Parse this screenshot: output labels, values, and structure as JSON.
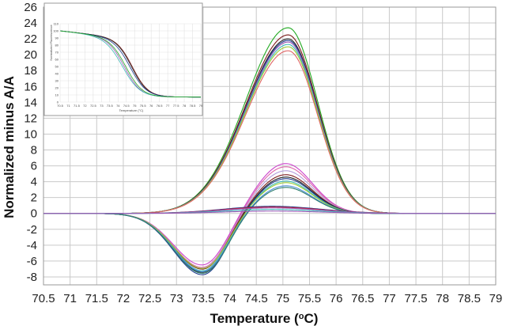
{
  "chart_data": [
    {
      "type": "line",
      "title": "",
      "xlabel": "Temperature (°C)",
      "xlabel_parts": {
        "before": "Temperature (",
        "sup": "o",
        "after": "C)"
      },
      "ylabel": "Normalized minus A/A",
      "xlim": [
        70.5,
        79
      ],
      "ylim": [
        -9,
        26
      ],
      "x_ticks": [
        "70.5",
        "71",
        "71.5",
        "72",
        "72.5",
        "73",
        "73.5",
        "74",
        "74.5",
        "75",
        "75.5",
        "76",
        "76.5",
        "77",
        "77.5",
        "78",
        "78.5",
        "79"
      ],
      "y_ticks": [
        "-8",
        "-6",
        "-4",
        "-2",
        "0",
        "2",
        "4",
        "6",
        "8",
        "10",
        "12",
        "14",
        "16",
        "18",
        "20",
        "22",
        "24",
        "26"
      ],
      "grid": true,
      "legend": "none",
      "series": [
        {
          "color": "#22aa22",
          "shape": "peak",
          "peak": 23.4,
          "center": 75.1,
          "sd_left": 0.8,
          "sd_right": 0.55
        },
        {
          "color": "#7c1c1c",
          "shape": "peak",
          "peak": 22.5,
          "center": 75.1,
          "sd_left": 0.8,
          "sd_right": 0.55
        },
        {
          "color": "#222222",
          "shape": "peak",
          "peak": 22.0,
          "center": 75.1,
          "sd_left": 0.8,
          "sd_right": 0.55
        },
        {
          "color": "#1f3d8f",
          "shape": "peak",
          "peak": 21.8,
          "center": 75.1,
          "sd_left": 0.8,
          "sd_right": 0.55
        },
        {
          "color": "#9b59b6",
          "shape": "peak",
          "peak": 21.6,
          "center": 75.1,
          "sd_left": 0.8,
          "sd_right": 0.55
        },
        {
          "color": "#3fb8b8",
          "shape": "peak",
          "peak": 21.3,
          "center": 75.1,
          "sd_left": 0.8,
          "sd_right": 0.55
        },
        {
          "color": "#99cc33",
          "shape": "peak",
          "peak": 21.0,
          "center": 75.1,
          "sd_left": 0.8,
          "sd_right": 0.55
        },
        {
          "color": "#e06666",
          "shape": "peak",
          "peak": 20.5,
          "center": 75.1,
          "sd_left": 0.8,
          "sd_right": 0.55
        },
        {
          "color": "#cc44cc",
          "shape": "biphasic",
          "pos": 6.3,
          "neg": -6.6
        },
        {
          "color": "#dd66aa",
          "shape": "biphasic",
          "pos": 5.9,
          "neg": -6.9
        },
        {
          "color": "#b39ddb",
          "shape": "biphasic",
          "pos": 5.4,
          "neg": -7.0
        },
        {
          "color": "#7c1c1c",
          "shape": "biphasic",
          "pos": 4.9,
          "neg": -7.1
        },
        {
          "color": "#222222",
          "shape": "biphasic",
          "pos": 4.6,
          "neg": -7.5
        },
        {
          "color": "#1f3d8f",
          "shape": "biphasic",
          "pos": 4.4,
          "neg": -7.8
        },
        {
          "color": "#3fb8b8",
          "shape": "biphasic",
          "pos": 4.1,
          "neg": -7.3
        },
        {
          "color": "#99cc33",
          "shape": "biphasic",
          "pos": 3.9,
          "neg": -7.0
        },
        {
          "color": "#4d8fd6",
          "shape": "biphasic",
          "pos": 3.5,
          "neg": -7.4
        },
        {
          "color": "#2e7d6e",
          "shape": "biphasic",
          "pos": 3.3,
          "neg": -7.6
        },
        {
          "color": "#1f3d8f",
          "shape": "bump",
          "peak": 0.9
        },
        {
          "color": "#cc2233",
          "shape": "bump",
          "peak": 0.8
        },
        {
          "color": "#9b59b6",
          "shape": "bump",
          "peak": 0.7
        },
        {
          "color": "#3fb8b8",
          "shape": "bump",
          "peak": 0.5
        },
        {
          "color": "#9b59b6",
          "shape": "bump",
          "peak": 0.3
        }
      ]
    },
    {
      "type": "line",
      "title": "",
      "xlabel": "Temperature (°C)",
      "ylabel": "Normalized Fluorescence",
      "xlim": [
        70.5,
        79
      ],
      "ylim": [
        0,
        110
      ],
      "x_ticks": [
        "70.5",
        "71",
        "71.5",
        "72",
        "72.5",
        "73",
        "73.5",
        "74",
        "74.5",
        "75",
        "75.5",
        "76",
        "76.5",
        "77",
        "77.5",
        "78",
        "78.5",
        "79"
      ],
      "y_ticks": [
        "0",
        "10",
        "20",
        "30",
        "40",
        "50",
        "60",
        "70",
        "80",
        "90",
        "100",
        "110"
      ],
      "grid": true,
      "legend": "none",
      "series": [
        {
          "color": "#7c1c1c",
          "midpoint": 74.9,
          "steepness": 2.1
        },
        {
          "color": "#222222",
          "midpoint": 74.85,
          "steepness": 2.1
        },
        {
          "color": "#1f3d8f",
          "midpoint": 74.75,
          "steepness": 2.0
        },
        {
          "color": "#9b59b6",
          "midpoint": 74.4,
          "steepness": 2.0
        },
        {
          "color": "#3fb8b8",
          "midpoint": 74.3,
          "steepness": 1.9
        },
        {
          "color": "#22aa22",
          "midpoint": 74.5,
          "steepness": 2.0
        }
      ]
    }
  ],
  "colors": {
    "grid": "#c9c9c9",
    "frame": "#999999",
    "inset_grid": "#e2e2e2"
  }
}
